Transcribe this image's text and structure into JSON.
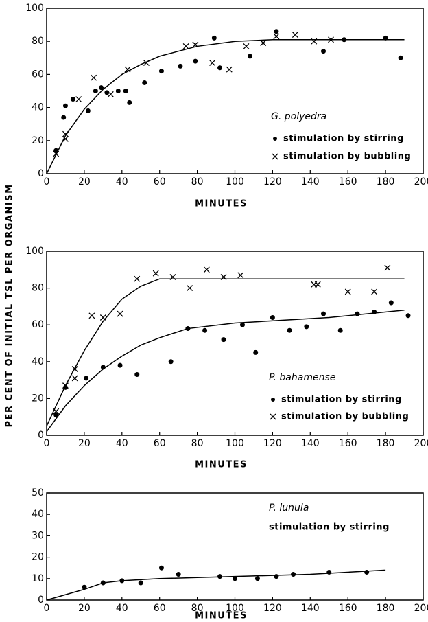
{
  "ylabel": "PER CENT OF INITIAL TSL PER ORGANISM",
  "chart_data": [
    {
      "type": "scatter",
      "title": "G. polyedra",
      "xlabel": "MINUTES",
      "xlim": [
        0,
        200
      ],
      "xticks": [
        0,
        20,
        40,
        60,
        80,
        100,
        120,
        140,
        160,
        180,
        200
      ],
      "ylim": [
        0,
        100
      ],
      "yticks": [
        0,
        20,
        40,
        60,
        80,
        100
      ],
      "series": [
        {
          "name": "stimulation by stirring",
          "marker": "dot",
          "color": "#000",
          "x": [
            5,
            9,
            10,
            14,
            22,
            26,
            29,
            32,
            38,
            42,
            44,
            52,
            61,
            71,
            79,
            89,
            92,
            108,
            122,
            147,
            158,
            180,
            188
          ],
          "values": [
            14,
            34,
            41,
            45,
            38,
            50,
            52,
            49,
            50,
            50,
            43,
            55,
            62,
            65,
            68,
            82,
            64,
            71,
            86,
            74,
            81,
            82,
            70
          ]
        },
        {
          "name": "stimulation by bubbling",
          "marker": "cross",
          "color": "#000",
          "x": [
            5,
            10,
            10,
            17,
            25,
            34,
            43,
            53,
            74,
            79,
            88,
            97,
            106,
            115,
            122,
            132,
            142,
            151
          ],
          "values": [
            12,
            21,
            24,
            45,
            58,
            48,
            63,
            67,
            77,
            78,
            67,
            63,
            77,
            79,
            83,
            84,
            80,
            81
          ]
        }
      ],
      "fits": [
        {
          "x": [
            0,
            10,
            20,
            30,
            40,
            50,
            60,
            80,
            100,
            120,
            190
          ],
          "values": [
            0,
            23,
            39,
            51,
            60,
            66,
            71,
            77,
            80,
            81,
            81
          ]
        }
      ]
    },
    {
      "type": "scatter",
      "title": "P. bahamense",
      "xlabel": "MINUTES",
      "xlim": [
        0,
        200
      ],
      "xticks": [
        0,
        20,
        40,
        60,
        80,
        100,
        120,
        140,
        160,
        180,
        200
      ],
      "ylim": [
        0,
        100
      ],
      "yticks": [
        0,
        20,
        40,
        60,
        80,
        100
      ],
      "series": [
        {
          "name": "stimulation by stirring",
          "marker": "dot",
          "color": "#000",
          "x": [
            5,
            10,
            21,
            30,
            39,
            48,
            66,
            75,
            84,
            94,
            104,
            111,
            120,
            129,
            138,
            147,
            156,
            165,
            174,
            183,
            192
          ],
          "values": [
            11,
            26,
            31,
            37,
            38,
            33,
            40,
            58,
            57,
            52,
            60,
            45,
            64,
            57,
            59,
            66,
            57,
            66,
            67,
            72,
            65
          ]
        },
        {
          "name": "stimulation by bubbling",
          "marker": "cross",
          "color": "#000",
          "x": [
            5,
            10,
            15,
            15,
            24,
            30,
            39,
            48,
            58,
            67,
            76,
            85,
            94,
            103,
            142,
            144,
            160,
            174,
            181
          ],
          "values": [
            13,
            27,
            31,
            36,
            65,
            64,
            66,
            85,
            88,
            86,
            80,
            90,
            86,
            87,
            82,
            82,
            78,
            78,
            91
          ]
        }
      ],
      "fits": [
        {
          "x": [
            0,
            10,
            20,
            30,
            40,
            50,
            60,
            65,
            190
          ],
          "values": [
            5,
            27,
            46,
            62,
            74,
            81,
            85,
            85,
            85
          ]
        },
        {
          "x": [
            0,
            10,
            20,
            30,
            40,
            50,
            60,
            75,
            100,
            150,
            190
          ],
          "values": [
            2,
            16,
            27,
            36,
            43,
            49,
            53,
            58,
            61,
            64,
            68
          ]
        }
      ]
    },
    {
      "type": "scatter",
      "title": "P. lunula",
      "xlabel": "MINUTES",
      "legend_markers": false,
      "xlim": [
        0,
        200
      ],
      "xticks": [
        0,
        20,
        40,
        60,
        80,
        100,
        120,
        140,
        160,
        180,
        200
      ],
      "ylim": [
        0,
        50
      ],
      "yticks": [
        0,
        10,
        20,
        30,
        40,
        50
      ],
      "series": [
        {
          "name": "stimulation by stirring",
          "marker": "dot",
          "color": "#000",
          "x": [
            20,
            30,
            40,
            50,
            61,
            70,
            92,
            100,
            112,
            122,
            131,
            150,
            170
          ],
          "values": [
            6,
            8,
            9,
            8,
            15,
            12,
            11,
            10,
            10,
            11,
            12,
            13,
            13
          ]
        }
      ],
      "fits": [
        {
          "x": [
            0,
            20,
            30,
            40,
            60,
            100,
            140,
            180
          ],
          "values": [
            0,
            5,
            8,
            9,
            10,
            11,
            12,
            14
          ]
        }
      ]
    }
  ]
}
